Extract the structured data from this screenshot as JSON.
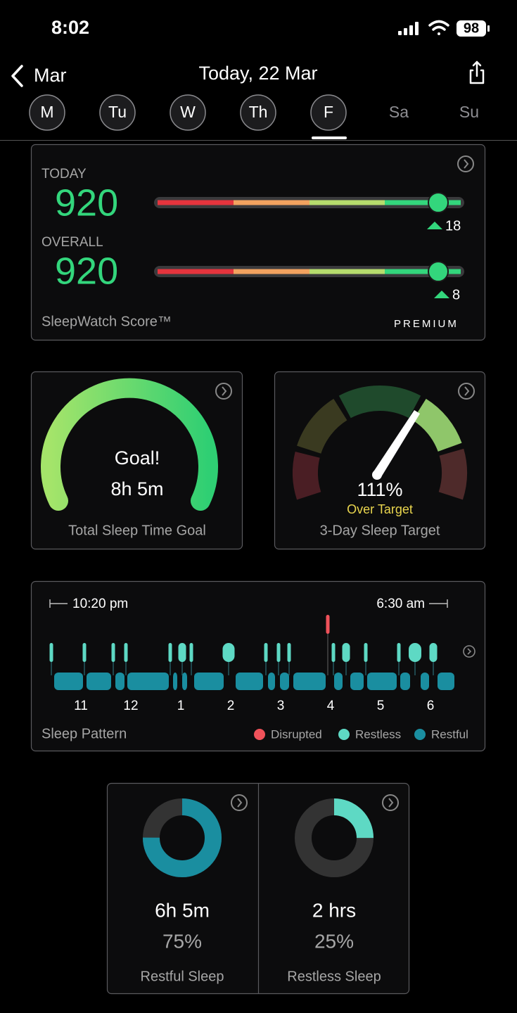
{
  "status_bar": {
    "time": "8:02",
    "battery": "98"
  },
  "nav": {
    "back": "Mar",
    "title": "Today, 22 Mar"
  },
  "days": [
    "M",
    "Tu",
    "W",
    "Th",
    "F",
    "Sa",
    "Su"
  ],
  "score_card": {
    "today_label": "TODAY",
    "today_value": "920",
    "today_change": "18",
    "overall_label": "OVERALL",
    "overall_value": "920",
    "overall_change": "8",
    "name": "SleepWatch Score™",
    "badge": "PREMIUM"
  },
  "goal_card": {
    "headline": "Goal!",
    "value": "8h 5m",
    "label": "Total Sleep Time Goal"
  },
  "target_card": {
    "value": "111%",
    "status": "Over Target",
    "label": "3-Day Sleep Target"
  },
  "pattern_card": {
    "start": "10:20 pm",
    "end": "6:30 am",
    "hours": [
      "11",
      "12",
      "1",
      "2",
      "3",
      "4",
      "5",
      "6"
    ],
    "title": "Sleep Pattern",
    "legend": [
      "Disrupted",
      "Restless",
      "Restful"
    ]
  },
  "sleep_cards": [
    {
      "duration": "6h 5m",
      "percent": "75%",
      "label": "Restful Sleep"
    },
    {
      "duration": "2 hrs",
      "percent": "25%",
      "label": "Restless Sleep"
    }
  ]
}
